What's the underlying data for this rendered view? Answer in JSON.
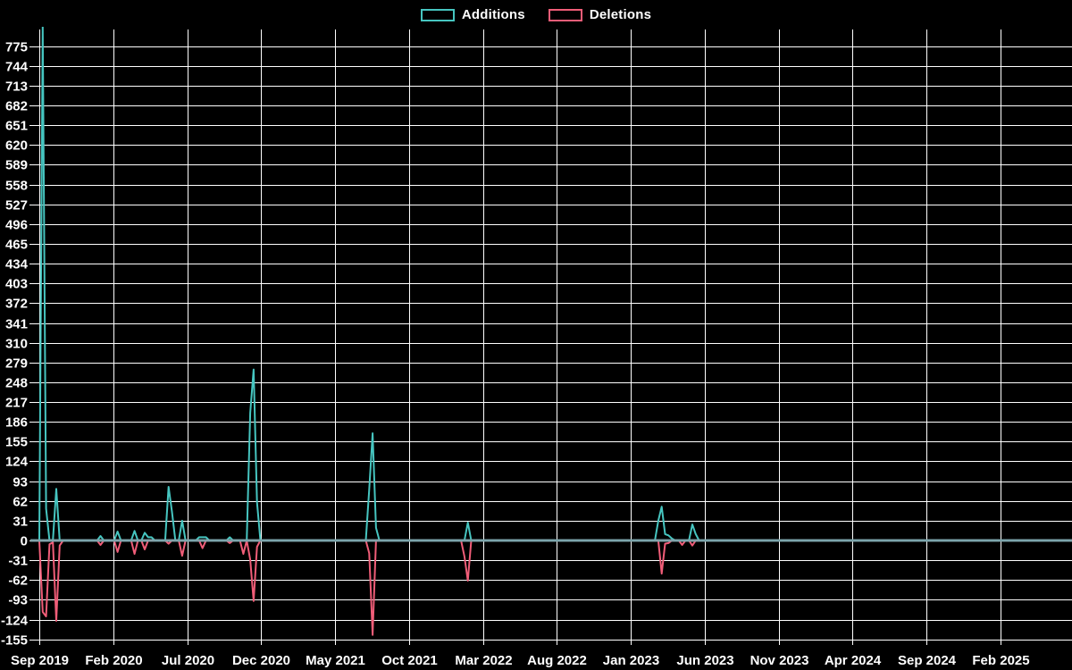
{
  "legend": [
    {
      "label": "Additions",
      "color": "#46c5c0"
    },
    {
      "label": "Deletions",
      "color": "#f05d78"
    }
  ],
  "colors": {
    "background": "#000000",
    "grid": "#ffffff",
    "text": "#ffffff",
    "additions": "#46c5c0",
    "deletions": "#f05d78",
    "zero_axis_line": "#7fa3ab"
  },
  "chart_data": {
    "type": "line",
    "title": "",
    "xlabel": "",
    "ylabel": "",
    "legend_position": "top-center",
    "grid": true,
    "x_tick_labels": [
      "Sep 2019",
      "Feb 2020",
      "Jul 2020",
      "Dec 2020",
      "May 2021",
      "Oct 2021",
      "Mar 2022",
      "Aug 2022",
      "Jan 2023",
      "Jun 2023",
      "Nov 2023",
      "Apr 2024",
      "Sep 2024",
      "Feb 2025"
    ],
    "x_label_interval_months": 5,
    "y_ticks": [
      775,
      744,
      713,
      682,
      651,
      620,
      589,
      558,
      527,
      496,
      465,
      434,
      403,
      372,
      341,
      310,
      279,
      248,
      217,
      186,
      155,
      124,
      93,
      62,
      31,
      0,
      -31,
      -62,
      -93,
      -124,
      -155
    ],
    "y_tick_step": 31,
    "ylim": [
      -162,
      806
    ],
    "x_unit": "week",
    "weeks_total": 304,
    "weeks_per_label_interval": 21.74,
    "series": [
      {
        "name": "Additions",
        "color": "#46c5c0",
        "default_value": 0,
        "max_value": 806,
        "points_nonzero": {
          "1": 806,
          "2": 50,
          "5": 81,
          "18": 7,
          "23": 14,
          "28": 15,
          "31": 12,
          "32": 5,
          "33": 5,
          "38": 84,
          "39": 45,
          "42": 31,
          "47": 5,
          "48": 5,
          "49": 5,
          "56": 5,
          "62": 200,
          "63": 268,
          "64": 60,
          "97": 80,
          "98": 168,
          "99": 20,
          "126": 28,
          "182": 31,
          "183": 53,
          "184": 10,
          "185": 8,
          "186": 3,
          "192": 25,
          "193": 10
        }
      },
      {
        "name": "Deletions",
        "color": "#f05d78",
        "default_value": 0,
        "min_value": -148,
        "points_nonzero": {
          "1": -112,
          "2": -119,
          "3": -6,
          "4": -3,
          "5": -126,
          "6": -8,
          "18": -7,
          "23": -18,
          "28": -21,
          "31": -14,
          "38": -5,
          "42": -24,
          "48": -12,
          "56": -4,
          "60": -21,
          "62": -30,
          "63": -95,
          "64": -10,
          "97": -20,
          "98": -148,
          "125": -25,
          "126": -63,
          "183": -52,
          "184": -5,
          "185": -4,
          "189": -7,
          "192": -8
        }
      }
    ]
  }
}
